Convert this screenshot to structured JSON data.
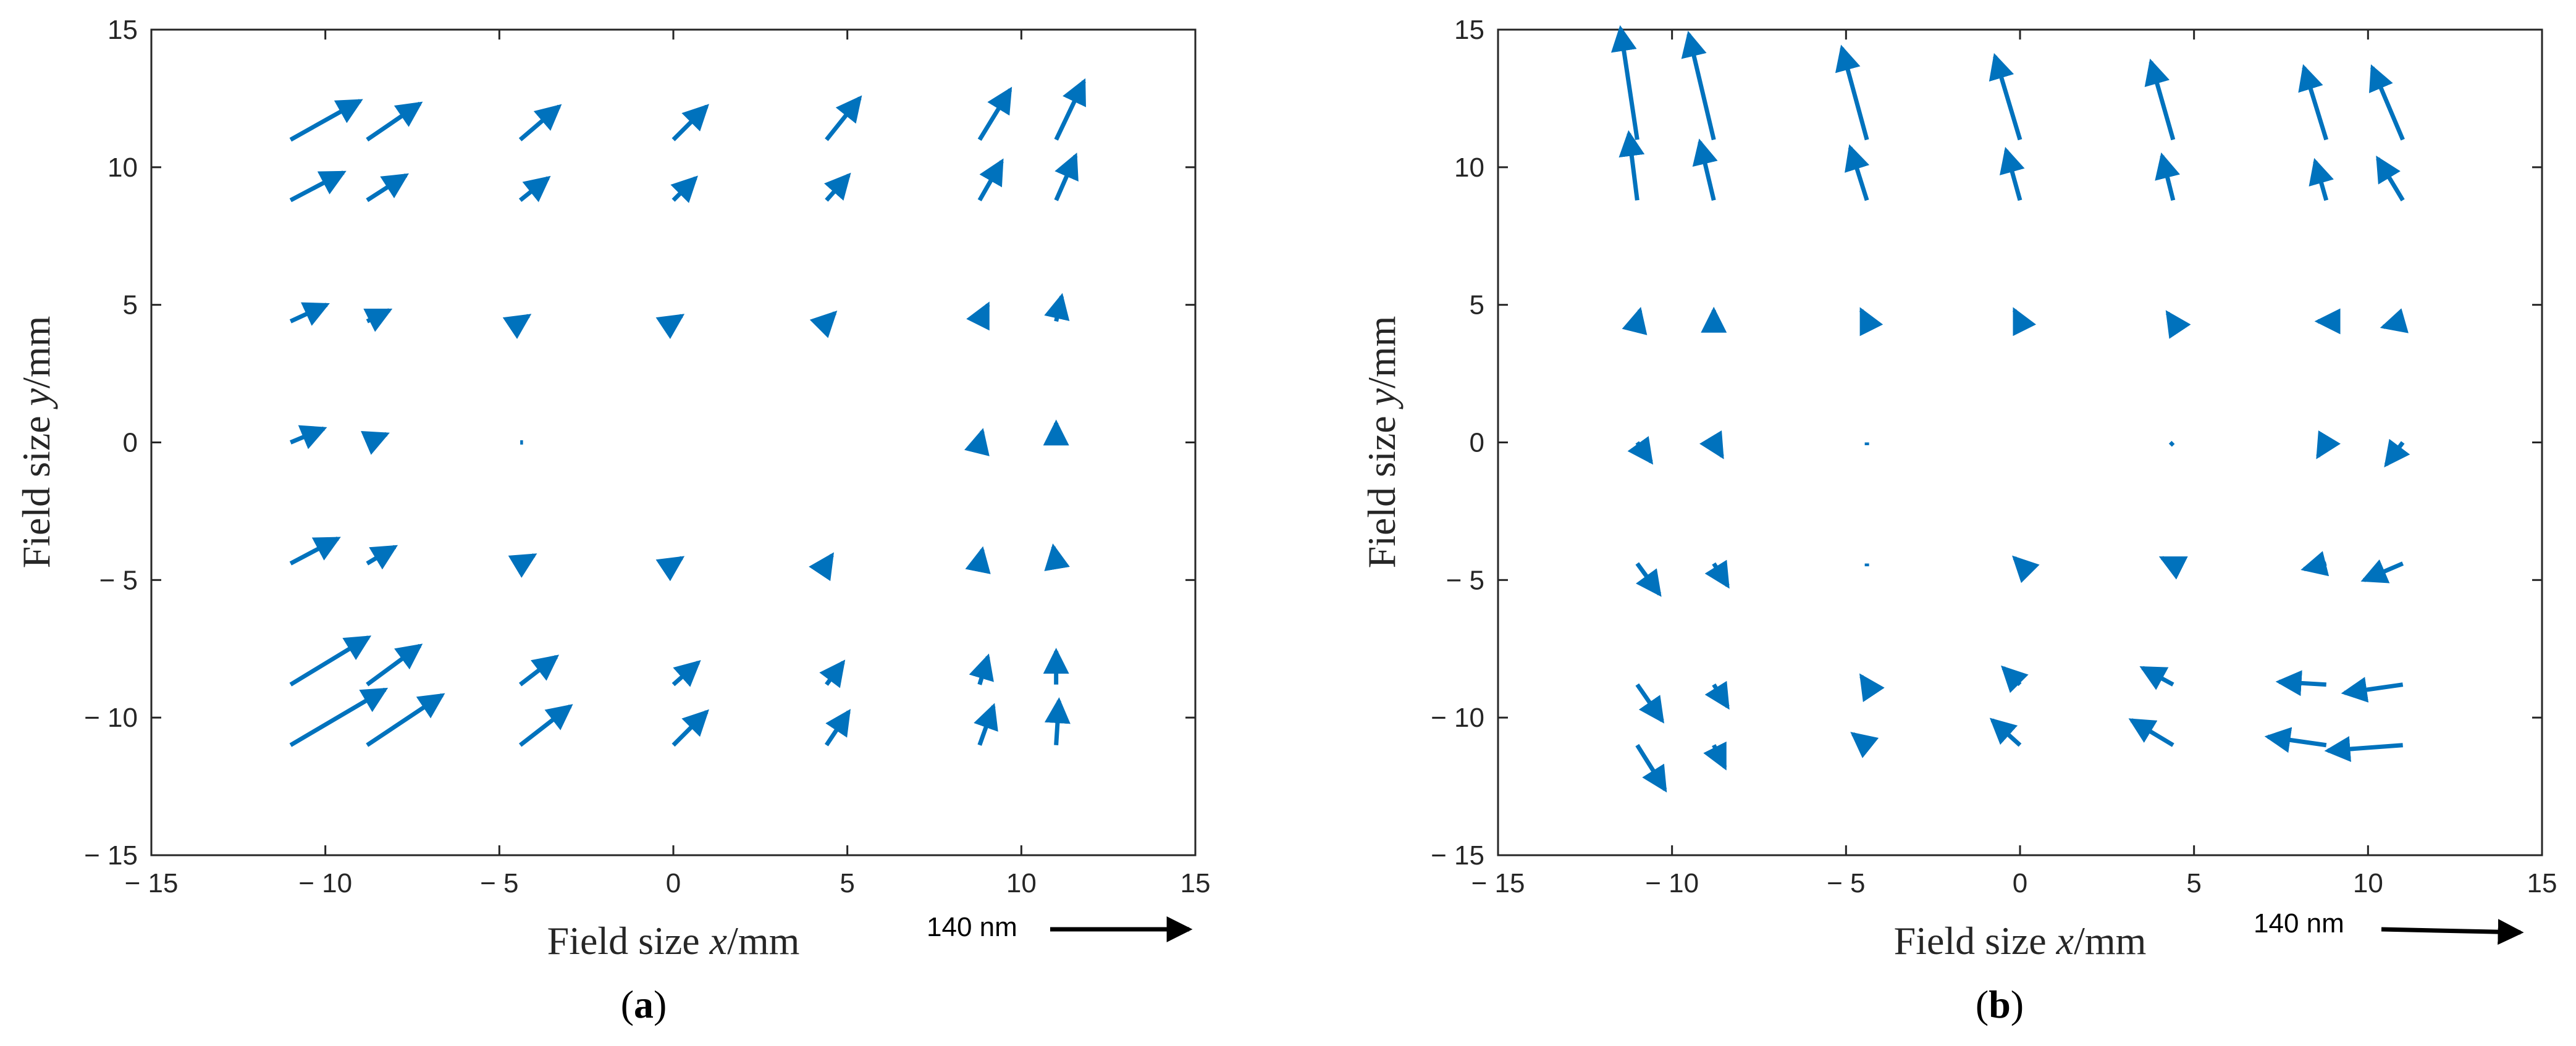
{
  "chart_data": [
    {
      "type": "quiver",
      "panel_label": "a",
      "xlabel_prefix": "Field size ",
      "xlabel_var": "x",
      "xlabel_suffix": "/mm",
      "ylabel_prefix": "Field size ",
      "ylabel_var": "y",
      "ylabel_suffix": "/mm",
      "xlim": [
        -15,
        15
      ],
      "ylim": [
        -15,
        15
      ],
      "xticks": [
        -15,
        -10,
        -5,
        0,
        5,
        10,
        15
      ],
      "yticks": [
        -15,
        -10,
        -5,
        0,
        5,
        10,
        15
      ],
      "xticklabels": [
        "− 15",
        "− 10",
        "− 5",
        "0",
        "5",
        "10",
        "15"
      ],
      "yticklabels": [
        "− 15",
        "− 10",
        "− 5",
        "0",
        "5",
        "10",
        "15"
      ],
      "scale_label": "140 nm",
      "grid": false,
      "color": "#0072BD",
      "vectors": [
        {
          "x": -11.0,
          "y": 11.0,
          "u": 2.5,
          "v": 1.4
        },
        {
          "x": -8.8,
          "y": 11.0,
          "u": 1.9,
          "v": 1.3
        },
        {
          "x": -4.4,
          "y": 11.0,
          "u": 1.4,
          "v": 1.2
        },
        {
          "x": 0.0,
          "y": 11.0,
          "u": 1.2,
          "v": 1.2
        },
        {
          "x": 4.4,
          "y": 11.0,
          "u": 1.2,
          "v": 1.5
        },
        {
          "x": 8.8,
          "y": 11.0,
          "u": 1.1,
          "v": 1.8
        },
        {
          "x": 11.0,
          "y": 11.0,
          "u": 1.0,
          "v": 2.1
        },
        {
          "x": -11.0,
          "y": 8.8,
          "u": 1.9,
          "v": 1.0
        },
        {
          "x": -8.8,
          "y": 8.8,
          "u": 1.4,
          "v": 0.9
        },
        {
          "x": -4.4,
          "y": 8.8,
          "u": 1.0,
          "v": 0.8
        },
        {
          "x": 0.0,
          "y": 8.8,
          "u": 0.8,
          "v": 0.8
        },
        {
          "x": 4.4,
          "y": 8.8,
          "u": 0.8,
          "v": 0.9
        },
        {
          "x": 8.8,
          "y": 8.8,
          "u": 0.8,
          "v": 1.4
        },
        {
          "x": 11.0,
          "y": 8.8,
          "u": 0.7,
          "v": 1.6
        },
        {
          "x": -11.0,
          "y": 4.4,
          "u": 1.3,
          "v": 0.6
        },
        {
          "x": -8.8,
          "y": 4.4,
          "u": 0.8,
          "v": 0.4
        },
        {
          "x": -4.4,
          "y": 4.4,
          "u": 0.3,
          "v": 0.2
        },
        {
          "x": 0.0,
          "y": 4.4,
          "u": 0.3,
          "v": 0.2
        },
        {
          "x": 4.4,
          "y": 4.4,
          "u": 0.3,
          "v": 0.3
        },
        {
          "x": 8.8,
          "y": 4.4,
          "u": 0.3,
          "v": 0.6
        },
        {
          "x": 11.0,
          "y": 4.4,
          "u": 0.2,
          "v": 0.9
        },
        {
          "x": -11.0,
          "y": 0.0,
          "u": 1.2,
          "v": 0.5
        },
        {
          "x": -8.8,
          "y": 0.0,
          "u": 0.7,
          "v": 0.3
        },
        {
          "x": -4.4,
          "y": 0.0,
          "u": 0.1,
          "v": 0.0
        },
        {
          "x": 0.0,
          "y": 0.0,
          "u": 0.0,
          "v": 0.0
        },
        {
          "x": 4.4,
          "y": 0.0,
          "u": 0.0,
          "v": 0.0
        },
        {
          "x": 8.8,
          "y": 0.0,
          "u": 0.1,
          "v": 0.4
        },
        {
          "x": 11.0,
          "y": 0.0,
          "u": 0.0,
          "v": 0.7
        },
        {
          "x": -11.0,
          "y": -4.4,
          "u": 1.7,
          "v": 0.9
        },
        {
          "x": -8.8,
          "y": -4.4,
          "u": 1.0,
          "v": 0.6
        },
        {
          "x": -4.4,
          "y": -4.4,
          "u": 0.5,
          "v": 0.3
        },
        {
          "x": 0.0,
          "y": -4.4,
          "u": 0.3,
          "v": 0.2
        },
        {
          "x": 4.4,
          "y": -4.4,
          "u": 0.2,
          "v": 0.3
        },
        {
          "x": 8.8,
          "y": -4.4,
          "u": 0.1,
          "v": 0.5
        },
        {
          "x": 11.0,
          "y": -4.4,
          "u": -0.1,
          "v": 0.6
        },
        {
          "x": -11.0,
          "y": -8.8,
          "u": 2.8,
          "v": 1.7
        },
        {
          "x": -8.8,
          "y": -8.8,
          "u": 1.9,
          "v": 1.4
        },
        {
          "x": -4.4,
          "y": -8.8,
          "u": 1.3,
          "v": 1.0
        },
        {
          "x": 0.0,
          "y": -8.8,
          "u": 0.9,
          "v": 0.8
        },
        {
          "x": 4.4,
          "y": -8.8,
          "u": 0.6,
          "v": 0.8
        },
        {
          "x": 8.8,
          "y": -8.8,
          "u": 0.3,
          "v": 1.0
        },
        {
          "x": 11.0,
          "y": -8.8,
          "u": 0.0,
          "v": 1.2
        },
        {
          "x": -11.0,
          "y": -11.0,
          "u": 3.4,
          "v": 2.0
        },
        {
          "x": -8.8,
          "y": -11.0,
          "u": 2.7,
          "v": 1.8
        },
        {
          "x": -4.4,
          "y": -11.0,
          "u": 1.8,
          "v": 1.4
        },
        {
          "x": 0.0,
          "y": -11.0,
          "u": 1.2,
          "v": 1.2
        },
        {
          "x": 4.4,
          "y": -11.0,
          "u": 0.8,
          "v": 1.2
        },
        {
          "x": 8.8,
          "y": -11.0,
          "u": 0.5,
          "v": 1.4
        },
        {
          "x": 11.0,
          "y": -11.0,
          "u": 0.1,
          "v": 1.6
        }
      ]
    },
    {
      "type": "quiver",
      "panel_label": "b",
      "xlabel_prefix": "Field size ",
      "xlabel_var": "x",
      "xlabel_suffix": "/mm",
      "ylabel_prefix": "Field size ",
      "ylabel_var": "y",
      "ylabel_suffix": "/mm",
      "xlim": [
        -15,
        15
      ],
      "ylim": [
        -15,
        15
      ],
      "xticks": [
        -15,
        -10,
        -5,
        0,
        5,
        10,
        15
      ],
      "yticks": [
        -15,
        -10,
        -5,
        0,
        5,
        10,
        15
      ],
      "xticklabels": [
        "− 15",
        "− 10",
        "− 5",
        "0",
        "5",
        "10",
        "15"
      ],
      "yticklabels": [
        "− 15",
        "− 10",
        "− 5",
        "0",
        "5",
        "10",
        "15"
      ],
      "scale_label": "140 nm",
      "grid": false,
      "color": "#0072BD",
      "vectors": [
        {
          "x": -11.0,
          "y": 11.0,
          "u": -0.6,
          "v": 4.0
        },
        {
          "x": -8.8,
          "y": 11.0,
          "u": -0.9,
          "v": 3.8
        },
        {
          "x": -4.4,
          "y": 11.0,
          "u": -0.9,
          "v": 3.3
        },
        {
          "x": 0.0,
          "y": 11.0,
          "u": -0.9,
          "v": 3.0
        },
        {
          "x": 4.4,
          "y": 11.0,
          "u": -0.8,
          "v": 2.8
        },
        {
          "x": 8.8,
          "y": 11.0,
          "u": -0.8,
          "v": 2.6
        },
        {
          "x": 11.0,
          "y": 11.0,
          "u": -1.1,
          "v": 2.6
        },
        {
          "x": -11.0,
          "y": 8.8,
          "u": -0.3,
          "v": 2.4
        },
        {
          "x": -8.8,
          "y": 8.8,
          "u": -0.5,
          "v": 2.1
        },
        {
          "x": -4.4,
          "y": 8.8,
          "u": -0.6,
          "v": 1.9
        },
        {
          "x": 0.0,
          "y": 8.8,
          "u": -0.5,
          "v": 1.8
        },
        {
          "x": 4.4,
          "y": 8.8,
          "u": -0.4,
          "v": 1.6
        },
        {
          "x": 8.8,
          "y": 8.8,
          "u": -0.4,
          "v": 1.4
        },
        {
          "x": 11.0,
          "y": 8.8,
          "u": -0.9,
          "v": 1.5
        },
        {
          "x": -11.0,
          "y": 4.4,
          "u": 0.1,
          "v": 0.4
        },
        {
          "x": -8.8,
          "y": 4.4,
          "u": 0.0,
          "v": 0.4
        },
        {
          "x": -4.4,
          "y": 4.4,
          "u": -0.2,
          "v": 0.4
        },
        {
          "x": 0.0,
          "y": 4.4,
          "u": -0.2,
          "v": 0.4
        },
        {
          "x": 4.4,
          "y": 4.4,
          "u": -0.2,
          "v": 0.3
        },
        {
          "x": 8.8,
          "y": 4.4,
          "u": -0.3,
          "v": 0.0
        },
        {
          "x": 11.0,
          "y": 4.4,
          "u": -0.7,
          "v": -0.2
        },
        {
          "x": -11.0,
          "y": 0.0,
          "u": 0.5,
          "v": -0.7
        },
        {
          "x": -8.8,
          "y": 0.0,
          "u": 0.3,
          "v": -0.5
        },
        {
          "x": -4.4,
          "y": 0.0,
          "u": 0.0,
          "v": -0.1
        },
        {
          "x": 0.0,
          "y": 0.0,
          "u": 0.0,
          "v": 0.0
        },
        {
          "x": 4.4,
          "y": 0.0,
          "u": -0.1,
          "v": -0.1
        },
        {
          "x": 8.8,
          "y": 0.0,
          "u": -0.3,
          "v": -0.5
        },
        {
          "x": 11.0,
          "y": 0.0,
          "u": -0.6,
          "v": -0.8
        },
        {
          "x": -11.0,
          "y": -4.4,
          "u": 0.8,
          "v": -1.1
        },
        {
          "x": -8.8,
          "y": -4.4,
          "u": 0.5,
          "v": -0.8
        },
        {
          "x": -4.4,
          "y": -4.4,
          "u": 0.0,
          "v": -0.1
        },
        {
          "x": 0.0,
          "y": -4.4,
          "u": -0.2,
          "v": 0.2
        },
        {
          "x": 4.4,
          "y": -4.4,
          "u": -0.4,
          "v": 0.2
        },
        {
          "x": 8.8,
          "y": -4.4,
          "u": -0.8,
          "v": -0.2
        },
        {
          "x": 11.0,
          "y": -4.4,
          "u": -1.4,
          "v": -0.6
        },
        {
          "x": -11.0,
          "y": -8.8,
          "u": 0.9,
          "v": -1.3
        },
        {
          "x": -8.8,
          "y": -8.8,
          "u": 0.5,
          "v": -0.8
        },
        {
          "x": -4.4,
          "y": -8.8,
          "u": -0.2,
          "v": 0.3
        },
        {
          "x": 0.0,
          "y": -8.8,
          "u": -0.6,
          "v": 0.6
        },
        {
          "x": 4.4,
          "y": -8.8,
          "u": -1.1,
          "v": 0.6
        },
        {
          "x": 8.8,
          "y": -8.8,
          "u": -1.7,
          "v": 0.1
        },
        {
          "x": 11.0,
          "y": -8.8,
          "u": -2.1,
          "v": -0.3
        },
        {
          "x": -11.0,
          "y": -11.0,
          "u": 1.0,
          "v": -1.6
        },
        {
          "x": -8.8,
          "y": -11.0,
          "u": 0.4,
          "v": -0.8
        },
        {
          "x": -4.4,
          "y": -11.0,
          "u": -0.5,
          "v": 0.4
        },
        {
          "x": 0.0,
          "y": -11.0,
          "u": -1.0,
          "v": 0.9
        },
        {
          "x": 4.4,
          "y": -11.0,
          "u": -1.5,
          "v": 0.9
        },
        {
          "x": 8.8,
          "y": -11.0,
          "u": -2.1,
          "v": 0.3
        },
        {
          "x": 11.0,
          "y": -11.0,
          "u": -2.7,
          "v": -0.2
        }
      ]
    }
  ]
}
